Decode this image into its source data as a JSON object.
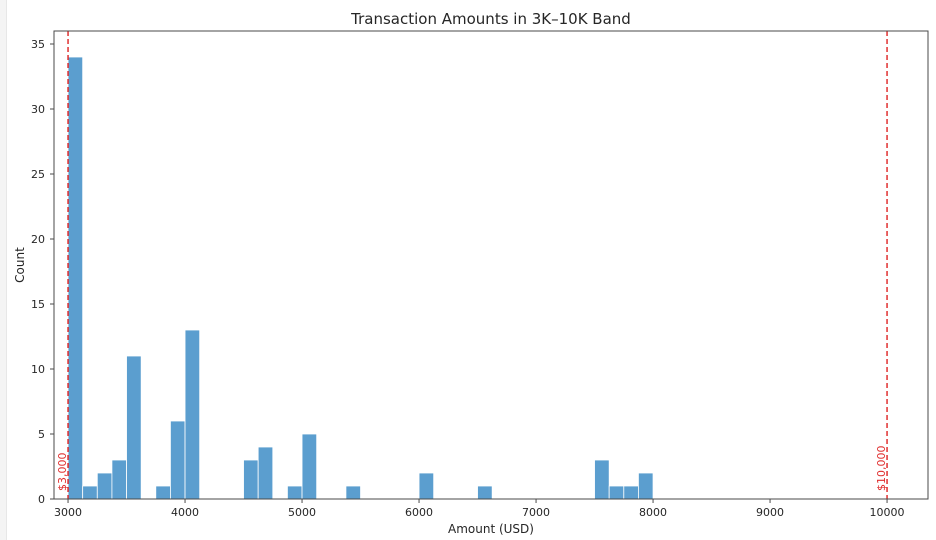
{
  "chart_data": {
    "type": "bar",
    "title": "Transaction Amounts in $3K–$10K Band",
    "title_display": "Transaction Amounts in 3K–10K Band",
    "xlabel": "Amount (USD)",
    "ylabel": "Count",
    "xlim": [
      2880,
      10350
    ],
    "ylim": [
      0,
      36
    ],
    "x_ticks": [
      3000,
      4000,
      5000,
      6000,
      7000,
      8000,
      9000,
      10000
    ],
    "y_ticks": [
      0,
      5,
      10,
      15,
      20,
      25,
      30,
      35
    ],
    "grid": false,
    "bar_color": "#5b9ecf",
    "bins": [
      {
        "start": 3000,
        "end": 3125,
        "count": 34
      },
      {
        "start": 3125,
        "end": 3250,
        "count": 1
      },
      {
        "start": 3250,
        "end": 3375,
        "count": 2
      },
      {
        "start": 3375,
        "end": 3500,
        "count": 3
      },
      {
        "start": 3500,
        "end": 3625,
        "count": 11
      },
      {
        "start": 3750,
        "end": 3875,
        "count": 1
      },
      {
        "start": 3875,
        "end": 4000,
        "count": 6
      },
      {
        "start": 4000,
        "end": 4125,
        "count": 13
      },
      {
        "start": 4500,
        "end": 4625,
        "count": 3
      },
      {
        "start": 4625,
        "end": 4750,
        "count": 4
      },
      {
        "start": 4875,
        "end": 5000,
        "count": 1
      },
      {
        "start": 5000,
        "end": 5125,
        "count": 5
      },
      {
        "start": 5375,
        "end": 5500,
        "count": 1
      },
      {
        "start": 6000,
        "end": 6125,
        "count": 2
      },
      {
        "start": 6500,
        "end": 6625,
        "count": 1
      },
      {
        "start": 7500,
        "end": 7625,
        "count": 3
      },
      {
        "start": 7625,
        "end": 7750,
        "count": 1
      },
      {
        "start": 7750,
        "end": 7875,
        "count": 1
      },
      {
        "start": 7875,
        "end": 8000,
        "count": 2
      }
    ],
    "reference_lines": [
      {
        "x": 3000,
        "label": "$3,000",
        "color": "#e03030"
      },
      {
        "x": 10000,
        "label": "$10,000",
        "color": "#e03030"
      }
    ]
  }
}
